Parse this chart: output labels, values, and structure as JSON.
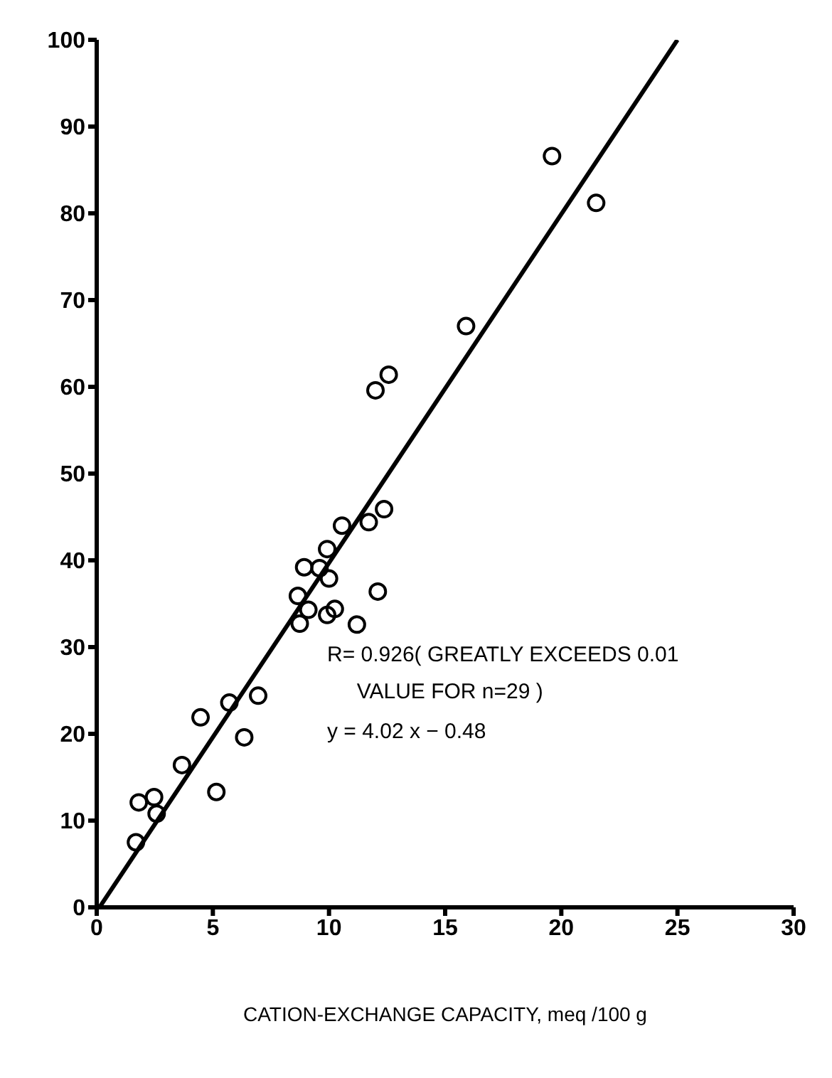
{
  "chart_data": {
    "type": "scatter",
    "xlabel": "CATION-EXCHANGE CAPACITY, meq /100 g",
    "xlim": [
      0,
      30
    ],
    "xticks": [
      0,
      5,
      10,
      15,
      20,
      25,
      30
    ],
    "ylim": [
      0,
      100
    ],
    "yticks": [
      0,
      10,
      20,
      30,
      40,
      50,
      60,
      70,
      80,
      90,
      100
    ],
    "grid": false,
    "legend": false,
    "annotations": [
      "R= 0.926( GREATLY EXCEEDS 0.01\n     VALUE FOR n=29 )",
      "y = 4.02 x − 0.48"
    ],
    "series": [
      {
        "marker": "circle",
        "color": "#000000",
        "x": [
          1.69,
          1.81,
          2.47,
          2.58,
          3.67,
          4.47,
          5.15,
          5.71,
          6.35,
          6.95,
          8.74,
          8.66,
          9.11,
          8.93,
          9.59,
          10.0,
          9.92,
          9.92,
          10.25,
          11.2,
          12.1,
          12.37,
          11.71,
          10.56,
          19.6,
          21.5,
          15.9,
          12.57,
          12.0
        ],
        "values": [
          7.5,
          12.1,
          12.7,
          10.8,
          16.4,
          21.9,
          13.3,
          23.6,
          19.6,
          24.4,
          32.7,
          35.9,
          34.3,
          39.2,
          39.1,
          37.9,
          41.3,
          33.7,
          34.4,
          32.6,
          36.4,
          45.9,
          44.4,
          44.0,
          86.6,
          81.2,
          67.0,
          61.4,
          59.6
        ]
      },
      {
        "type": "line",
        "marker": "none",
        "color": "#000000",
        "x": [
          0.12,
          25.0
        ],
        "values": [
          0,
          100
        ]
      }
    ]
  }
}
